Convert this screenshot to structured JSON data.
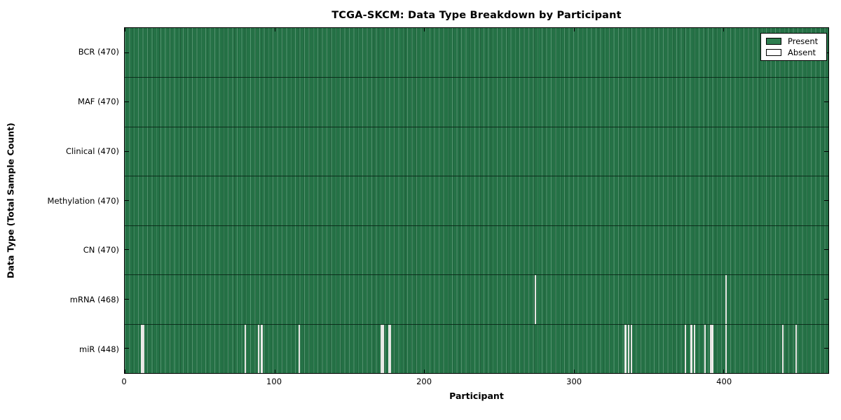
{
  "window": {
    "background_color": "#ffffff"
  },
  "chart_data": {
    "type": "heatmap",
    "title": "TCGA-SKCM: Data Type Breakdown by Participant",
    "xlabel": "Participant",
    "ylabel": "Data Type (Total Sample Count)",
    "xlim": [
      0,
      470
    ],
    "x_ticks": [
      0,
      100,
      200,
      300,
      400
    ],
    "n_participants": 470,
    "grid": false,
    "tick_direction": "in",
    "colors": {
      "present": "#2e7d4f",
      "absent": "#ffffff",
      "row_separator": "#0b2616",
      "plot_border": "#000000"
    },
    "rows": [
      {
        "data_type": "BCR",
        "label": "BCR (470)",
        "present_count": 470,
        "absent_participants": []
      },
      {
        "data_type": "MAF",
        "label": "MAF (470)",
        "present_count": 470,
        "absent_participants": []
      },
      {
        "data_type": "Clinical",
        "label": "Clinical (470)",
        "present_count": 470,
        "absent_participants": []
      },
      {
        "data_type": "Methylation",
        "label": "Methylation (470)",
        "present_count": 470,
        "absent_participants": []
      },
      {
        "data_type": "CN",
        "label": "CN (470)",
        "present_count": 470,
        "absent_participants": []
      },
      {
        "data_type": "mRNA",
        "label": "mRNA (468)",
        "present_count": 468,
        "absent_participants": [
          274,
          401
        ]
      },
      {
        "data_type": "miR",
        "label": "miR (448)",
        "present_count": 448,
        "absent_participants": [
          11,
          12,
          80,
          89,
          91,
          116,
          171,
          172,
          176,
          177,
          334,
          336,
          338,
          374,
          378,
          380,
          387,
          391,
          392,
          401,
          439,
          448
        ]
      }
    ],
    "legend": {
      "position": "upper right",
      "entries": [
        {
          "label": "Present",
          "color": "#2e7d4f"
        },
        {
          "label": "Absent",
          "color": "#ffffff"
        }
      ]
    }
  }
}
